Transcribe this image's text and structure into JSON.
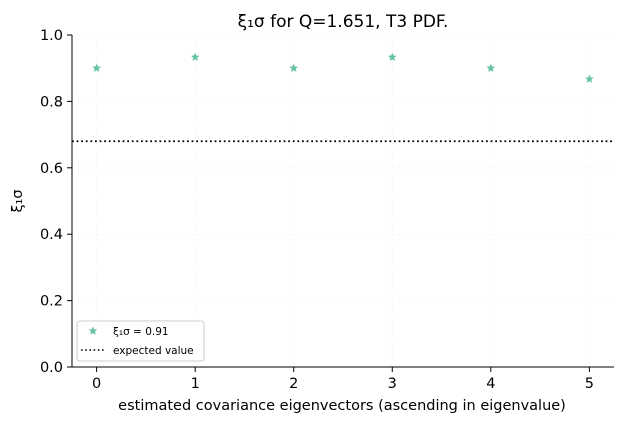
{
  "chart_data": {
    "type": "scatter",
    "title": "ξ₁σ for Q=1.651, T3 PDF.",
    "xlabel": "estimated covariance eigenvectors (ascending in eigenvalue)",
    "ylabel": "ξ₁σ",
    "xlim": [
      -0.25,
      5.25
    ],
    "ylim": [
      0,
      1.0
    ],
    "xticks": [
      "0",
      "1",
      "2",
      "3",
      "4",
      "5"
    ],
    "yticks": [
      "0.0",
      "0.2",
      "0.4",
      "0.6",
      "0.8",
      "1.0"
    ],
    "grid": true,
    "legend_position": "bottom-left",
    "series": [
      {
        "name": "ξ₁σ = 0.91",
        "marker": "star",
        "color": "#66c2a5",
        "x": [
          0,
          1,
          2,
          3,
          4,
          5
        ],
        "y": [
          0.9,
          0.933,
          0.9,
          0.933,
          0.9,
          0.867
        ]
      }
    ],
    "reference_line": {
      "name": "expected value",
      "y": 0.68,
      "style": "dotted",
      "color": "#000000"
    }
  }
}
